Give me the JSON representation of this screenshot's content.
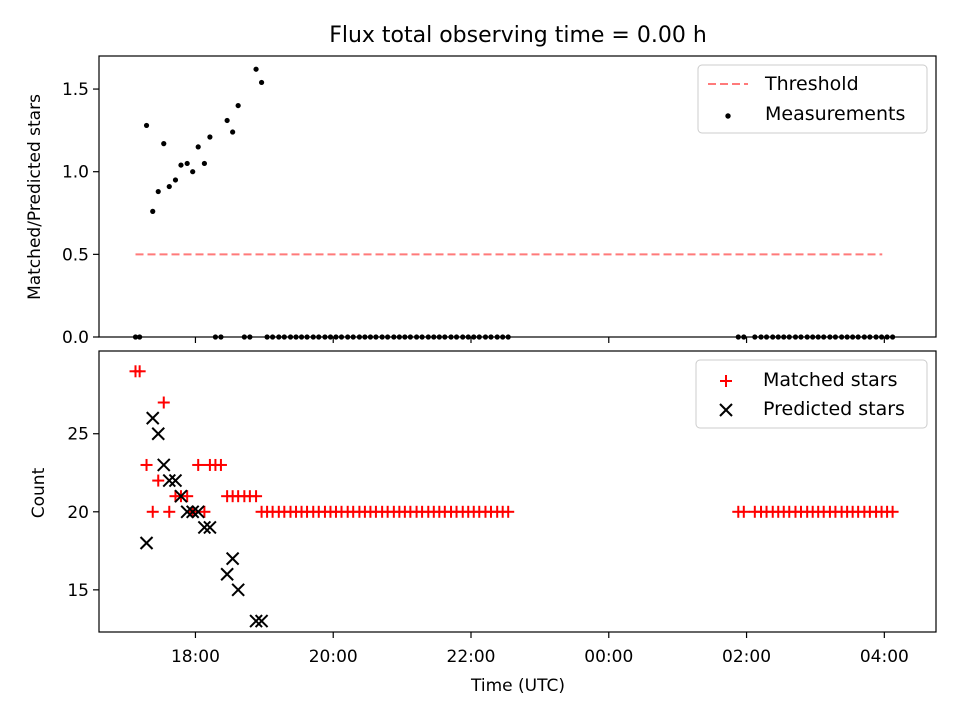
{
  "chart_data": [
    {
      "type": "scatter",
      "title": "Flux total observing time = 0.00 h",
      "xlabel": "",
      "ylabel": "Matched/Predicted stars",
      "x_unit": "hours since 00:00 on the first night",
      "xlim": [
        16.6,
        28.75
      ],
      "ylim": [
        0.0,
        1.7
      ],
      "yticks": [
        0.0,
        0.5,
        1.0,
        1.5
      ],
      "ytick_labels": [
        "0.0",
        "0.5",
        "1.0",
        "1.5"
      ],
      "grid": false,
      "legend": {
        "location": "upper right",
        "entries": [
          {
            "label": "Threshold",
            "style": "dashed-line",
            "color": "#ff7a7a"
          },
          {
            "label": "Measurements",
            "style": "dot",
            "color": "#000000"
          }
        ]
      },
      "threshold": {
        "value": 0.5,
        "x_start": 17.13,
        "x_end": 27.97
      },
      "series": [
        {
          "name": "Measurements",
          "color": "#000000",
          "points": [
            [
              17.13,
              0.0
            ],
            [
              17.19,
              0.0
            ],
            [
              17.29,
              1.28
            ],
            [
              17.38,
              0.76
            ],
            [
              17.46,
              0.88
            ],
            [
              17.54,
              1.17
            ],
            [
              17.62,
              0.91
            ],
            [
              17.71,
              0.95
            ],
            [
              17.79,
              1.04
            ],
            [
              17.88,
              1.05
            ],
            [
              17.96,
              1.0
            ],
            [
              18.04,
              1.15
            ],
            [
              18.13,
              1.05
            ],
            [
              18.21,
              1.21
            ],
            [
              18.29,
              0.0
            ],
            [
              18.37,
              0.0
            ],
            [
              18.46,
              1.31
            ],
            [
              18.54,
              1.24
            ],
            [
              18.62,
              1.4
            ],
            [
              18.71,
              0.0
            ],
            [
              18.79,
              0.0
            ],
            [
              18.88,
              1.62
            ],
            [
              18.96,
              1.54
            ],
            [
              19.04,
              0.0
            ],
            [
              19.12,
              0.0
            ],
            [
              19.21,
              0.0
            ],
            [
              19.29,
              0.0
            ],
            [
              19.38,
              0.0
            ],
            [
              19.46,
              0.0
            ],
            [
              19.54,
              0.0
            ],
            [
              19.62,
              0.0
            ],
            [
              19.71,
              0.0
            ],
            [
              19.79,
              0.0
            ],
            [
              19.88,
              0.0
            ],
            [
              19.96,
              0.0
            ],
            [
              20.04,
              0.0
            ],
            [
              20.12,
              0.0
            ],
            [
              20.21,
              0.0
            ],
            [
              20.29,
              0.0
            ],
            [
              20.38,
              0.0
            ],
            [
              20.46,
              0.0
            ],
            [
              20.54,
              0.0
            ],
            [
              20.62,
              0.0
            ],
            [
              20.71,
              0.0
            ],
            [
              20.79,
              0.0
            ],
            [
              20.88,
              0.0
            ],
            [
              20.96,
              0.0
            ],
            [
              21.04,
              0.0
            ],
            [
              21.12,
              0.0
            ],
            [
              21.21,
              0.0
            ],
            [
              21.29,
              0.0
            ],
            [
              21.38,
              0.0
            ],
            [
              21.46,
              0.0
            ],
            [
              21.54,
              0.0
            ],
            [
              21.62,
              0.0
            ],
            [
              21.71,
              0.0
            ],
            [
              21.79,
              0.0
            ],
            [
              21.88,
              0.0
            ],
            [
              21.96,
              0.0
            ],
            [
              22.04,
              0.0
            ],
            [
              22.12,
              0.0
            ],
            [
              22.21,
              0.0
            ],
            [
              22.29,
              0.0
            ],
            [
              22.38,
              0.0
            ],
            [
              22.46,
              0.0
            ],
            [
              22.54,
              0.0
            ],
            [
              25.88,
              0.0
            ],
            [
              25.96,
              0.0
            ],
            [
              26.12,
              0.0
            ],
            [
              26.21,
              0.0
            ],
            [
              26.29,
              0.0
            ],
            [
              26.38,
              0.0
            ],
            [
              26.46,
              0.0
            ],
            [
              26.54,
              0.0
            ],
            [
              26.62,
              0.0
            ],
            [
              26.71,
              0.0
            ],
            [
              26.79,
              0.0
            ],
            [
              26.88,
              0.0
            ],
            [
              26.96,
              0.0
            ],
            [
              27.04,
              0.0
            ],
            [
              27.12,
              0.0
            ],
            [
              27.21,
              0.0
            ],
            [
              27.29,
              0.0
            ],
            [
              27.38,
              0.0
            ],
            [
              27.46,
              0.0
            ],
            [
              27.54,
              0.0
            ],
            [
              27.62,
              0.0
            ],
            [
              27.71,
              0.0
            ],
            [
              27.79,
              0.0
            ],
            [
              27.88,
              0.0
            ],
            [
              27.96,
              0.0
            ],
            [
              28.04,
              0.0
            ],
            [
              28.12,
              0.0
            ]
          ]
        }
      ]
    },
    {
      "type": "scatter",
      "title": "",
      "xlabel": "Time (UTC)",
      "ylabel": "Count",
      "x_unit": "hours since 00:00 on the first night",
      "xlim": [
        16.6,
        28.75
      ],
      "ylim": [
        12.3,
        30.3
      ],
      "xticks": [
        18,
        20,
        22,
        24,
        26,
        28
      ],
      "xtick_labels": [
        "18:00",
        "20:00",
        "22:00",
        "00:00",
        "02:00",
        "04:00"
      ],
      "yticks": [
        15,
        20,
        25
      ],
      "ytick_labels": [
        "15",
        "20",
        "25"
      ],
      "grid": false,
      "legend": {
        "location": "upper right",
        "entries": [
          {
            "label": "Matched stars",
            "style": "plus",
            "color": "#ff0000"
          },
          {
            "label": "Predicted stars",
            "style": "x",
            "color": "#000000"
          }
        ]
      },
      "series": [
        {
          "name": "Matched stars",
          "marker": "plus",
          "color": "#ff0000",
          "points": [
            [
              17.13,
              29
            ],
            [
              17.19,
              29
            ],
            [
              17.29,
              23
            ],
            [
              17.38,
              20
            ],
            [
              17.46,
              22
            ],
            [
              17.54,
              27
            ],
            [
              17.62,
              20
            ],
            [
              17.71,
              21
            ],
            [
              17.79,
              21
            ],
            [
              17.88,
              21
            ],
            [
              17.96,
              20
            ],
            [
              18.04,
              23
            ],
            [
              18.13,
              20
            ],
            [
              18.21,
              23
            ],
            [
              18.29,
              23
            ],
            [
              18.37,
              23
            ],
            [
              18.46,
              21
            ],
            [
              18.54,
              21
            ],
            [
              18.62,
              21
            ],
            [
              18.71,
              21
            ],
            [
              18.79,
              21
            ],
            [
              18.88,
              21
            ],
            [
              18.96,
              20
            ],
            [
              19.04,
              20
            ],
            [
              19.12,
              20
            ],
            [
              19.21,
              20
            ],
            [
              19.29,
              20
            ],
            [
              19.38,
              20
            ],
            [
              19.46,
              20
            ],
            [
              19.54,
              20
            ],
            [
              19.62,
              20
            ],
            [
              19.71,
              20
            ],
            [
              19.79,
              20
            ],
            [
              19.88,
              20
            ],
            [
              19.96,
              20
            ],
            [
              20.04,
              20
            ],
            [
              20.12,
              20
            ],
            [
              20.21,
              20
            ],
            [
              20.29,
              20
            ],
            [
              20.38,
              20
            ],
            [
              20.46,
              20
            ],
            [
              20.54,
              20
            ],
            [
              20.62,
              20
            ],
            [
              20.71,
              20
            ],
            [
              20.79,
              20
            ],
            [
              20.88,
              20
            ],
            [
              20.96,
              20
            ],
            [
              21.04,
              20
            ],
            [
              21.12,
              20
            ],
            [
              21.21,
              20
            ],
            [
              21.29,
              20
            ],
            [
              21.38,
              20
            ],
            [
              21.46,
              20
            ],
            [
              21.54,
              20
            ],
            [
              21.62,
              20
            ],
            [
              21.71,
              20
            ],
            [
              21.79,
              20
            ],
            [
              21.88,
              20
            ],
            [
              21.96,
              20
            ],
            [
              22.04,
              20
            ],
            [
              22.12,
              20
            ],
            [
              22.21,
              20
            ],
            [
              22.29,
              20
            ],
            [
              22.38,
              20
            ],
            [
              22.46,
              20
            ],
            [
              22.54,
              20
            ],
            [
              25.88,
              20
            ],
            [
              25.96,
              20
            ],
            [
              26.12,
              20
            ],
            [
              26.21,
              20
            ],
            [
              26.29,
              20
            ],
            [
              26.38,
              20
            ],
            [
              26.46,
              20
            ],
            [
              26.54,
              20
            ],
            [
              26.62,
              20
            ],
            [
              26.71,
              20
            ],
            [
              26.79,
              20
            ],
            [
              26.88,
              20
            ],
            [
              26.96,
              20
            ],
            [
              27.04,
              20
            ],
            [
              27.12,
              20
            ],
            [
              27.21,
              20
            ],
            [
              27.29,
              20
            ],
            [
              27.38,
              20
            ],
            [
              27.46,
              20
            ],
            [
              27.54,
              20
            ],
            [
              27.62,
              20
            ],
            [
              27.71,
              20
            ],
            [
              27.79,
              20
            ],
            [
              27.88,
              20
            ],
            [
              27.96,
              20
            ],
            [
              28.04,
              20
            ],
            [
              28.12,
              20
            ]
          ]
        },
        {
          "name": "Predicted stars",
          "marker": "x",
          "color": "#000000",
          "points": [
            [
              17.29,
              18
            ],
            [
              17.38,
              26
            ],
            [
              17.46,
              25
            ],
            [
              17.54,
              23
            ],
            [
              17.62,
              22
            ],
            [
              17.71,
              22
            ],
            [
              17.79,
              21
            ],
            [
              17.88,
              20
            ],
            [
              17.96,
              20
            ],
            [
              18.04,
              20
            ],
            [
              18.13,
              19
            ],
            [
              18.21,
              19
            ],
            [
              18.46,
              16
            ],
            [
              18.54,
              17
            ],
            [
              18.62,
              15
            ],
            [
              18.88,
              13
            ],
            [
              18.96,
              13
            ]
          ]
        }
      ]
    }
  ]
}
